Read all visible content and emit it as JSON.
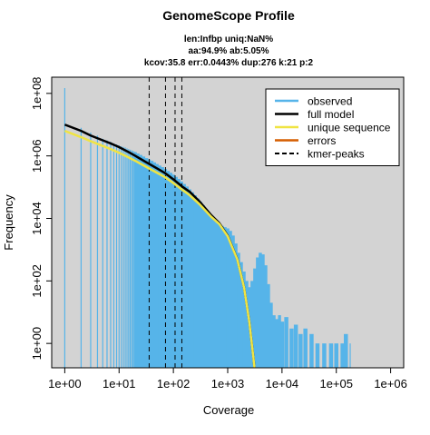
{
  "chart_data": {
    "type": "line",
    "title": "GenomeScope Profile",
    "subtitle": [
      "len:Infbp uniq:NaN%",
      "aa:94.9% ab:5.05%",
      "kcov:35.8 err:0.0443%  dup:276  k:21 p:2"
    ],
    "x_label": "Coverage",
    "y_label": "Frequency",
    "log_x": true,
    "log_y": true,
    "xlim": [
      0.575,
      1740000
    ],
    "ylim": [
      0.166,
      330000000
    ],
    "xticks": [
      {
        "value": 1,
        "label": "1e+00"
      },
      {
        "value": 10,
        "label": "1e+01"
      },
      {
        "value": 100,
        "label": "1e+02"
      },
      {
        "value": 1000,
        "label": "1e+03"
      },
      {
        "value": 10000,
        "label": "1e+04"
      },
      {
        "value": 100000,
        "label": "1e+05"
      },
      {
        "value": 1000000,
        "label": "1e+06"
      }
    ],
    "yticks": [
      {
        "value": 1,
        "label": "1e+00"
      },
      {
        "value": 100,
        "label": "1e+02"
      },
      {
        "value": 10000,
        "label": "1e+04"
      },
      {
        "value": 1000000,
        "label": "1e+06"
      },
      {
        "value": 100000000,
        "label": "1e+08"
      }
    ],
    "background": "#d3d3d3",
    "legend": "top-right",
    "series": [
      {
        "name": "observed",
        "color": "#56b4e9",
        "style": "h",
        "x": [
          1,
          2,
          3,
          4,
          5,
          6,
          7,
          8,
          9,
          10,
          11,
          12,
          13,
          14,
          15,
          16,
          17,
          18,
          19,
          20,
          22,
          25,
          28,
          32,
          36,
          40,
          45,
          50,
          56,
          63,
          71,
          80,
          90,
          100,
          112,
          126,
          141,
          158,
          178,
          200,
          224,
          251,
          282,
          316,
          355,
          398,
          447,
          501,
          562,
          631,
          708,
          794,
          891,
          1000,
          1122,
          1259,
          1413,
          1585,
          1778,
          1995,
          2239,
          2512,
          2818,
          3162,
          3548,
          3981,
          4467,
          5012,
          5623,
          6310,
          7079,
          8000,
          9000,
          10000,
          12000,
          15000,
          18000,
          22000,
          27000,
          35000,
          45000,
          60000,
          80000,
          100000,
          130000,
          150000,
          180000
        ],
        "values": [
          148000000,
          7940000,
          5620000,
          4470000,
          3550000,
          3160000,
          2820000,
          2510000,
          2340000,
          2190000,
          2040000,
          1950000,
          1860000,
          1740000,
          1660000,
          1580000,
          1510000,
          1450000,
          1380000,
          1320000,
          1200000,
          1070000,
          955000,
          851000,
          759000,
          692000,
          617000,
          550000,
          490000,
          437000,
          380000,
          331000,
          288000,
          251000,
          214000,
          182000,
          151000,
          126000,
          105000,
          85100,
          69200,
          55000,
          43700,
          33900,
          26300,
          20000,
          15100,
          11500,
          8910,
          7240,
          6310,
          5750,
          5250,
          4790,
          3980,
          2820,
          1580,
          794,
          398,
          200,
          100,
          63,
          100,
          251,
          562,
          794,
          708,
          316,
          79,
          20,
          8,
          6,
          8,
          5,
          7,
          3,
          4,
          2,
          3,
          2,
          1,
          1,
          1,
          1,
          1,
          2,
          1
        ]
      },
      {
        "name": "full model",
        "color": "#000000",
        "style": "line",
        "x": [
          1,
          2,
          3,
          5,
          7,
          10,
          15,
          20,
          30,
          50,
          70,
          100,
          150,
          200,
          300,
          500,
          700,
          1000,
          1500,
          2000,
          2500,
          3000,
          3500
        ],
        "values": [
          10000000,
          6310000,
          4470000,
          3160000,
          2510000,
          1910000,
          1320000,
          1000000,
          661000,
          398000,
          282000,
          178000,
          100000,
          70800,
          35500,
          12600,
          7080,
          2820,
          501,
          63,
          5,
          0.32,
          0.02
        ]
      },
      {
        "name": "unique sequence",
        "color": "#f0e442",
        "style": "line",
        "x": [
          1,
          2,
          3,
          5,
          7,
          10,
          15,
          20,
          30,
          50,
          70,
          100,
          150,
          200,
          300,
          500,
          700,
          1000,
          1500,
          2000,
          2500,
          3000,
          3500
        ],
        "values": [
          6310000,
          3980000,
          2950000,
          2090000,
          1660000,
          1260000,
          891000,
          692000,
          468000,
          288000,
          209000,
          135000,
          79400,
          55000,
          28800,
          11200,
          6610,
          2690,
          490,
          62,
          4.9,
          0.31,
          0.02
        ]
      },
      {
        "name": "errors",
        "color": "#d55e00",
        "style": "line",
        "x": [],
        "values": []
      },
      {
        "name": "kmer-peaks",
        "color": "#000000",
        "style": "vline",
        "x": [
          35.8,
          71.6,
          107.4,
          143.2
        ]
      }
    ]
  }
}
